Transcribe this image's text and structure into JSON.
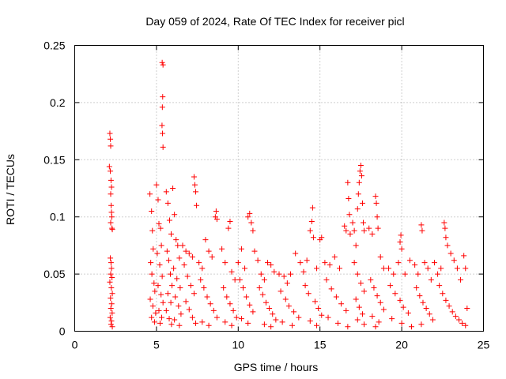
{
  "chart_data": {
    "type": "scatter",
    "title": "Day 059 of 2024, Rate Of TEC Index for receiver picl",
    "xlabel": "GPS time / hours",
    "ylabel": "ROTI / TECUs",
    "xlim": [
      0,
      25
    ],
    "ylim": [
      0,
      0.25
    ],
    "grid": true,
    "marker": "plus",
    "x_ticks": [
      {
        "value": 0,
        "label": "0"
      },
      {
        "value": 5,
        "label": "5"
      },
      {
        "value": 10,
        "label": "10"
      },
      {
        "value": 15,
        "label": "15"
      },
      {
        "value": 20,
        "label": "20"
      },
      {
        "value": 25,
        "label": "25"
      }
    ],
    "y_ticks": [
      {
        "value": 0,
        "label": "0"
      },
      {
        "value": 0.05,
        "label": "0.05"
      },
      {
        "value": 0.1,
        "label": "0.1"
      },
      {
        "value": 0.15,
        "label": "0.15"
      },
      {
        "value": 0.2,
        "label": "0.2"
      },
      {
        "value": 0.25,
        "label": "0.25"
      }
    ],
    "series": [
      {
        "name": "ROTI",
        "color": "#ff0000",
        "points": [
          [
            2.15,
            0.173
          ],
          [
            2.18,
            0.168
          ],
          [
            2.2,
            0.162
          ],
          [
            2.12,
            0.144
          ],
          [
            2.18,
            0.14
          ],
          [
            2.22,
            0.132
          ],
          [
            2.25,
            0.126
          ],
          [
            2.2,
            0.12
          ],
          [
            2.23,
            0.11
          ],
          [
            2.25,
            0.104
          ],
          [
            2.27,
            0.1
          ],
          [
            2.2,
            0.095
          ],
          [
            2.28,
            0.09
          ],
          [
            2.3,
            0.089
          ],
          [
            2.18,
            0.064
          ],
          [
            2.22,
            0.06
          ],
          [
            2.25,
            0.055
          ],
          [
            2.2,
            0.05
          ],
          [
            2.28,
            0.047
          ],
          [
            2.15,
            0.043
          ],
          [
            2.24,
            0.038
          ],
          [
            2.3,
            0.033
          ],
          [
            2.19,
            0.029
          ],
          [
            2.26,
            0.024
          ],
          [
            2.21,
            0.02
          ],
          [
            2.29,
            0.016
          ],
          [
            2.17,
            0.012
          ],
          [
            2.25,
            0.009
          ],
          [
            2.22,
            0.006
          ],
          [
            2.3,
            0.004
          ],
          [
            4.6,
            0.12
          ],
          [
            4.7,
            0.105
          ],
          [
            4.75,
            0.088
          ],
          [
            4.8,
            0.072
          ],
          [
            4.65,
            0.06
          ],
          [
            4.72,
            0.05
          ],
          [
            4.85,
            0.042
          ],
          [
            4.9,
            0.035
          ],
          [
            4.62,
            0.028
          ],
          [
            4.78,
            0.022
          ],
          [
            4.95,
            0.016
          ],
          [
            4.7,
            0.012
          ],
          [
            4.88,
            0.008
          ],
          [
            5.0,
            0.128
          ],
          [
            5.1,
            0.115
          ],
          [
            5.15,
            0.094
          ],
          [
            5.25,
            0.09
          ],
          [
            5.3,
            0.075
          ],
          [
            5.05,
            0.068
          ],
          [
            5.2,
            0.058
          ],
          [
            5.35,
            0.048
          ],
          [
            5.1,
            0.04
          ],
          [
            5.28,
            0.032
          ],
          [
            5.4,
            0.025
          ],
          [
            5.15,
            0.018
          ],
          [
            5.32,
            0.012
          ],
          [
            5.22,
            0.007
          ],
          [
            5.35,
            0.235
          ],
          [
            5.4,
            0.233
          ],
          [
            5.38,
            0.205
          ],
          [
            5.36,
            0.196
          ],
          [
            5.34,
            0.18
          ],
          [
            5.37,
            0.173
          ],
          [
            5.4,
            0.161
          ],
          [
            5.6,
            0.122
          ],
          [
            5.7,
            0.112
          ],
          [
            5.8,
            0.097
          ],
          [
            5.9,
            0.085
          ],
          [
            5.65,
            0.07
          ],
          [
            5.75,
            0.062
          ],
          [
            5.85,
            0.05
          ],
          [
            5.95,
            0.04
          ],
          [
            5.7,
            0.033
          ],
          [
            5.88,
            0.025
          ],
          [
            5.6,
            0.018
          ],
          [
            5.78,
            0.011
          ],
          [
            5.92,
            0.006
          ],
          [
            6.0,
            0.125
          ],
          [
            6.1,
            0.102
          ],
          [
            6.2,
            0.08
          ],
          [
            6.3,
            0.075
          ],
          [
            6.4,
            0.064
          ],
          [
            6.05,
            0.055
          ],
          [
            6.25,
            0.046
          ],
          [
            6.45,
            0.038
          ],
          [
            6.15,
            0.03
          ],
          [
            6.35,
            0.022
          ],
          [
            6.5,
            0.015
          ],
          [
            6.1,
            0.01
          ],
          [
            6.4,
            0.005
          ],
          [
            6.6,
            0.075
          ],
          [
            6.8,
            0.07
          ],
          [
            7.0,
            0.068
          ],
          [
            7.2,
            0.065
          ],
          [
            7.3,
            0.135
          ],
          [
            7.35,
            0.128
          ],
          [
            7.4,
            0.122
          ],
          [
            7.45,
            0.11
          ],
          [
            6.7,
            0.058
          ],
          [
            6.9,
            0.048
          ],
          [
            7.1,
            0.04
          ],
          [
            7.3,
            0.033
          ],
          [
            6.8,
            0.026
          ],
          [
            7.0,
            0.019
          ],
          [
            7.2,
            0.012
          ],
          [
            7.4,
            0.007
          ],
          [
            7.6,
            0.06
          ],
          [
            7.8,
            0.055
          ],
          [
            8.0,
            0.08
          ],
          [
            8.2,
            0.07
          ],
          [
            8.4,
            0.065
          ],
          [
            8.6,
            0.1
          ],
          [
            8.65,
            0.105
          ],
          [
            8.7,
            0.098
          ],
          [
            7.7,
            0.045
          ],
          [
            7.9,
            0.038
          ],
          [
            8.1,
            0.03
          ],
          [
            8.3,
            0.024
          ],
          [
            8.5,
            0.018
          ],
          [
            8.7,
            0.012
          ],
          [
            7.8,
            0.008
          ],
          [
            8.2,
            0.005
          ],
          [
            9.0,
            0.072
          ],
          [
            9.2,
            0.06
          ],
          [
            9.4,
            0.09
          ],
          [
            9.5,
            0.096
          ],
          [
            9.6,
            0.052
          ],
          [
            9.8,
            0.045
          ],
          [
            9.1,
            0.038
          ],
          [
            9.3,
            0.03
          ],
          [
            9.5,
            0.024
          ],
          [
            9.7,
            0.018
          ],
          [
            9.9,
            0.012
          ],
          [
            9.2,
            0.008
          ],
          [
            9.6,
            0.005
          ],
          [
            10.0,
            0.06
          ],
          [
            10.2,
            0.072
          ],
          [
            10.4,
            0.055
          ],
          [
            10.6,
            0.1
          ],
          [
            10.7,
            0.103
          ],
          [
            10.8,
            0.095
          ],
          [
            10.9,
            0.088
          ],
          [
            11.0,
            0.07
          ],
          [
            10.1,
            0.045
          ],
          [
            10.3,
            0.038
          ],
          [
            10.5,
            0.03
          ],
          [
            10.7,
            0.023
          ],
          [
            10.9,
            0.017
          ],
          [
            10.2,
            0.011
          ],
          [
            10.6,
            0.007
          ],
          [
            11.2,
            0.062
          ],
          [
            11.4,
            0.05
          ],
          [
            11.6,
            0.045
          ],
          [
            11.8,
            0.06
          ],
          [
            12.0,
            0.058
          ],
          [
            12.2,
            0.052
          ],
          [
            11.3,
            0.038
          ],
          [
            11.5,
            0.032
          ],
          [
            11.7,
            0.025
          ],
          [
            11.9,
            0.02
          ],
          [
            12.1,
            0.015
          ],
          [
            12.3,
            0.01
          ],
          [
            11.6,
            0.006
          ],
          [
            12.0,
            0.004
          ],
          [
            12.5,
            0.05
          ],
          [
            12.8,
            0.048
          ],
          [
            13.0,
            0.042
          ],
          [
            13.2,
            0.05
          ],
          [
            13.5,
            0.068
          ],
          [
            13.8,
            0.06
          ],
          [
            12.6,
            0.035
          ],
          [
            12.9,
            0.028
          ],
          [
            13.1,
            0.022
          ],
          [
            13.4,
            0.017
          ],
          [
            13.7,
            0.012
          ],
          [
            12.7,
            0.008
          ],
          [
            13.3,
            0.005
          ],
          [
            14.0,
            0.052
          ],
          [
            14.2,
            0.062
          ],
          [
            14.4,
            0.088
          ],
          [
            14.5,
            0.096
          ],
          [
            14.55,
            0.108
          ],
          [
            14.6,
            0.082
          ],
          [
            14.8,
            0.055
          ],
          [
            15.0,
            0.08
          ],
          [
            15.1,
            0.082
          ],
          [
            14.1,
            0.04
          ],
          [
            14.3,
            0.033
          ],
          [
            14.7,
            0.026
          ],
          [
            14.9,
            0.02
          ],
          [
            15.1,
            0.014
          ],
          [
            14.4,
            0.009
          ],
          [
            14.8,
            0.005
          ],
          [
            15.3,
            0.06
          ],
          [
            15.6,
            0.058
          ],
          [
            15.9,
            0.065
          ],
          [
            16.2,
            0.055
          ],
          [
            16.5,
            0.092
          ],
          [
            16.6,
            0.088
          ],
          [
            16.7,
            0.13
          ],
          [
            16.75,
            0.116
          ],
          [
            16.8,
            0.102
          ],
          [
            16.85,
            0.085
          ],
          [
            15.4,
            0.045
          ],
          [
            15.7,
            0.037
          ],
          [
            16.0,
            0.03
          ],
          [
            16.3,
            0.024
          ],
          [
            16.6,
            0.018
          ],
          [
            15.5,
            0.012
          ],
          [
            16.1,
            0.007
          ],
          [
            16.7,
            0.004
          ],
          [
            17.0,
            0.095
          ],
          [
            17.1,
            0.088
          ],
          [
            17.2,
            0.075
          ],
          [
            17.3,
            0.107
          ],
          [
            17.35,
            0.12
          ],
          [
            17.4,
            0.13
          ],
          [
            17.45,
            0.14
          ],
          [
            17.5,
            0.145
          ],
          [
            17.55,
            0.136
          ],
          [
            17.6,
            0.112
          ],
          [
            17.65,
            0.095
          ],
          [
            17.7,
            0.088
          ],
          [
            17.1,
            0.06
          ],
          [
            17.3,
            0.05
          ],
          [
            17.5,
            0.042
          ],
          [
            17.7,
            0.035
          ],
          [
            17.2,
            0.028
          ],
          [
            17.4,
            0.021
          ],
          [
            17.6,
            0.015
          ],
          [
            17.3,
            0.01
          ],
          [
            17.7,
            0.006
          ],
          [
            18.0,
            0.09
          ],
          [
            18.2,
            0.085
          ],
          [
            18.4,
            0.118
          ],
          [
            18.45,
            0.112
          ],
          [
            18.5,
            0.1
          ],
          [
            18.55,
            0.09
          ],
          [
            18.7,
            0.065
          ],
          [
            18.9,
            0.055
          ],
          [
            18.1,
            0.045
          ],
          [
            18.3,
            0.038
          ],
          [
            18.5,
            0.031
          ],
          [
            18.7,
            0.025
          ],
          [
            18.9,
            0.019
          ],
          [
            18.2,
            0.013
          ],
          [
            18.6,
            0.008
          ],
          [
            18.4,
            0.004
          ],
          [
            19.2,
            0.055
          ],
          [
            19.5,
            0.05
          ],
          [
            19.8,
            0.06
          ],
          [
            19.9,
            0.078
          ],
          [
            19.95,
            0.084
          ],
          [
            20.0,
            0.072
          ],
          [
            20.2,
            0.05
          ],
          [
            20.5,
            0.062
          ],
          [
            19.3,
            0.04
          ],
          [
            19.6,
            0.033
          ],
          [
            19.9,
            0.027
          ],
          [
            20.1,
            0.021
          ],
          [
            20.4,
            0.016
          ],
          [
            19.4,
            0.011
          ],
          [
            20.0,
            0.007
          ],
          [
            20.6,
            0.004
          ],
          [
            20.8,
            0.058
          ],
          [
            21.0,
            0.05
          ],
          [
            21.2,
            0.093
          ],
          [
            21.25,
            0.088
          ],
          [
            21.4,
            0.06
          ],
          [
            21.6,
            0.055
          ],
          [
            21.8,
            0.045
          ],
          [
            22.0,
            0.06
          ],
          [
            20.9,
            0.038
          ],
          [
            21.1,
            0.031
          ],
          [
            21.3,
            0.025
          ],
          [
            21.5,
            0.02
          ],
          [
            21.7,
            0.015
          ],
          [
            21.9,
            0.01
          ],
          [
            21.2,
            0.006
          ],
          [
            22.2,
            0.05
          ],
          [
            22.4,
            0.055
          ],
          [
            22.6,
            0.095
          ],
          [
            22.65,
            0.09
          ],
          [
            22.7,
            0.082
          ],
          [
            22.8,
            0.075
          ],
          [
            23.0,
            0.068
          ],
          [
            23.2,
            0.062
          ],
          [
            23.4,
            0.055
          ],
          [
            23.6,
            0.045
          ],
          [
            23.8,
            0.066
          ],
          [
            23.9,
            0.055
          ],
          [
            22.3,
            0.04
          ],
          [
            22.5,
            0.033
          ],
          [
            22.7,
            0.027
          ],
          [
            22.9,
            0.022
          ],
          [
            23.1,
            0.017
          ],
          [
            23.3,
            0.013
          ],
          [
            23.5,
            0.01
          ],
          [
            23.7,
            0.007
          ],
          [
            23.9,
            0.005
          ],
          [
            24.0,
            0.02
          ]
        ]
      }
    ]
  }
}
